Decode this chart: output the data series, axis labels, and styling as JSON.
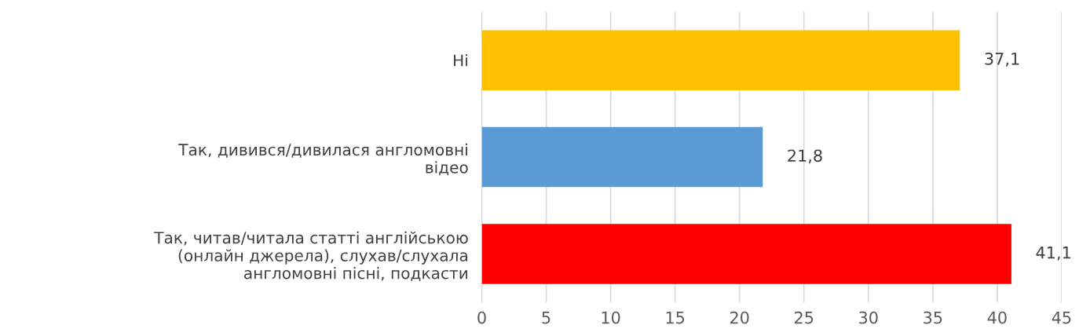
{
  "chart_data": {
    "type": "bar",
    "orientation": "horizontal",
    "categories": [
      "Ні",
      "Так, дивився/дивилася англомовні\nвідео",
      "Так, читав/читала статті англійською\n(онлайн джерела), слухав/слухала\nангломовні пісні, подкасти"
    ],
    "values": [
      37.1,
      21.8,
      41.1
    ],
    "colors": [
      "#ffc000",
      "#5b9bd5",
      "#ff0000"
    ],
    "value_labels": [
      "37,1",
      "21,8",
      "41,1"
    ],
    "xlim": [
      0,
      45
    ],
    "xticks": [
      0,
      5,
      10,
      15,
      20,
      25,
      30,
      35,
      40,
      45
    ],
    "grid": "x",
    "legend": false
  }
}
